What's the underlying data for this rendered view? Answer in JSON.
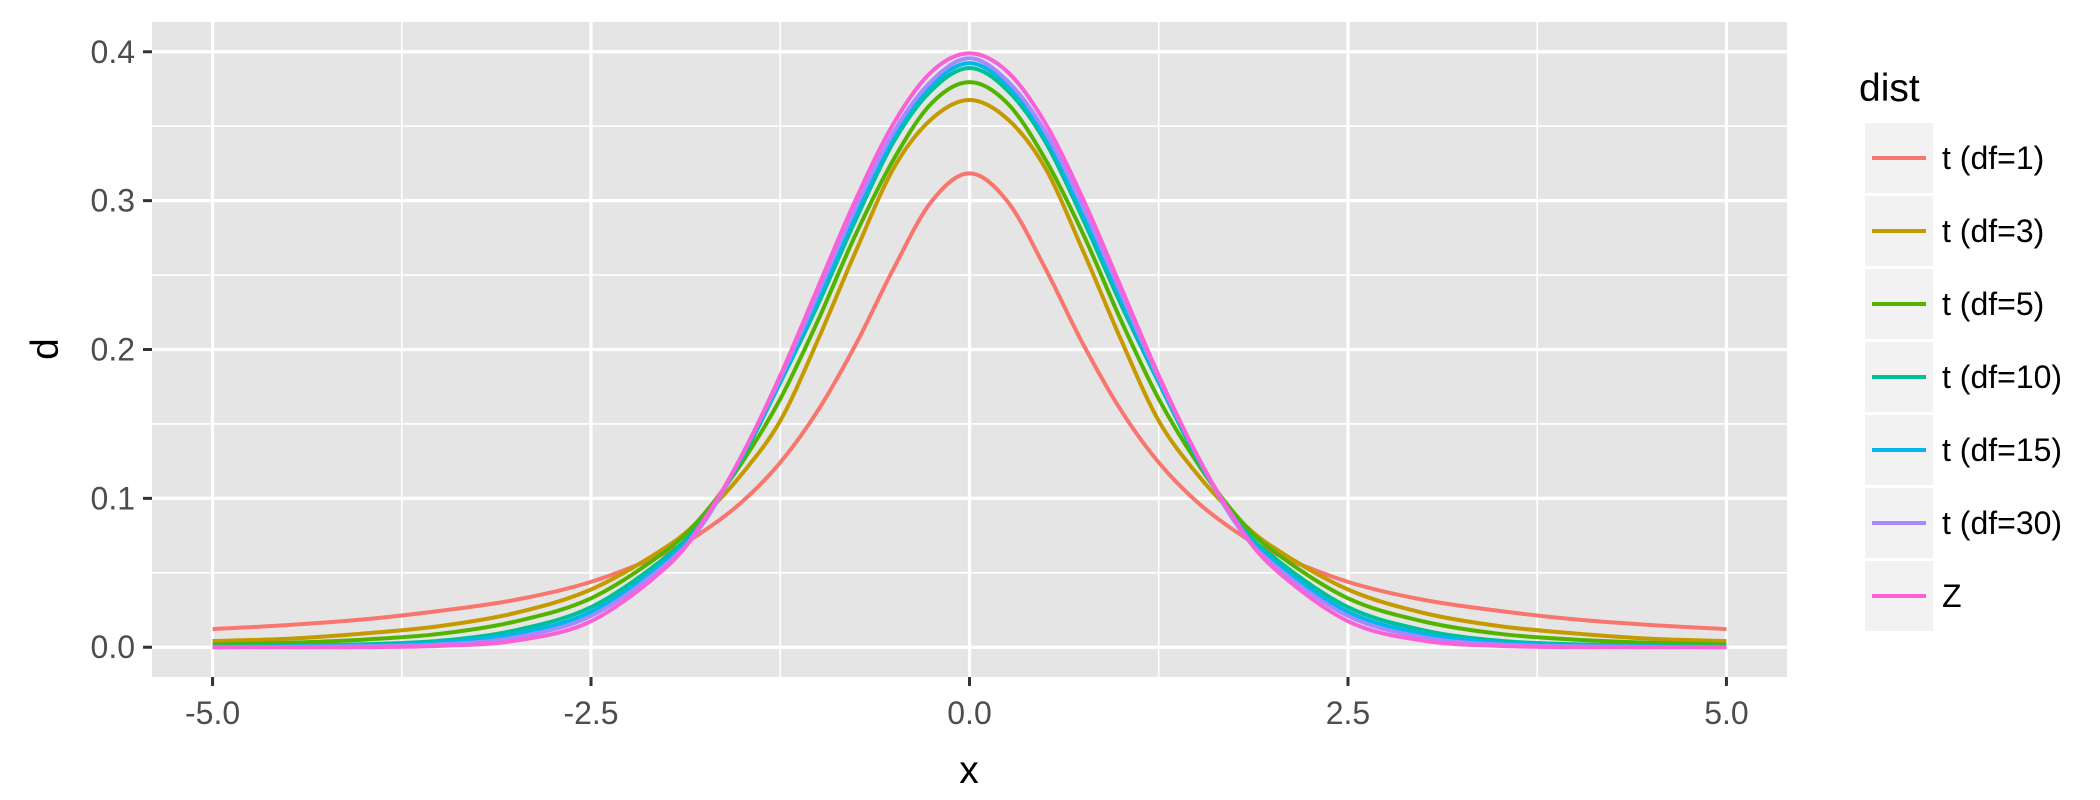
{
  "chart_data": {
    "type": "line",
    "xlabel": "x",
    "ylabel": "d",
    "xlim": [
      -5.4,
      5.4
    ],
    "ylim": [
      -0.02,
      0.42
    ],
    "x_ticks": [
      -5.0,
      -2.5,
      0.0,
      2.5,
      5.0
    ],
    "x_tick_labels": [
      "-5.0",
      "-2.5",
      "0.0",
      "2.5",
      "5.0"
    ],
    "y_ticks": [
      0.0,
      0.1,
      0.2,
      0.3,
      0.4
    ],
    "y_tick_labels": [
      "0.0",
      "0.1",
      "0.2",
      "0.3",
      "0.4"
    ],
    "grid": true,
    "legend": {
      "title": "dist",
      "position": "right"
    },
    "x": [
      -5.0,
      -4.5,
      -4.0,
      -3.5,
      -3.0,
      -2.5,
      -2.0,
      -1.75,
      -1.5,
      -1.25,
      -1.0,
      -0.75,
      -0.5,
      -0.25,
      0.0,
      0.25,
      0.5,
      0.75,
      1.0,
      1.25,
      1.5,
      1.75,
      2.0,
      2.5,
      3.0,
      3.5,
      4.0,
      4.5,
      5.0
    ],
    "series": [
      {
        "name": "t (df=1)",
        "color": "#F8766D",
        "values": [
          0.0122,
          0.0149,
          0.0187,
          0.0244,
          0.0318,
          0.0439,
          0.0637,
          0.0784,
          0.0979,
          0.1241,
          0.1592,
          0.2037,
          0.2546,
          0.2996,
          0.3183,
          0.2996,
          0.2546,
          0.2037,
          0.1592,
          0.1241,
          0.0979,
          0.0784,
          0.0637,
          0.0439,
          0.0318,
          0.0244,
          0.0187,
          0.0149,
          0.0122
        ]
      },
      {
        "name": "t (df=3)",
        "color": "#C49A00",
        "values": [
          0.0042,
          0.0057,
          0.0092,
          0.0142,
          0.023,
          0.0388,
          0.0675,
          0.089,
          0.1168,
          0.1521,
          0.2067,
          0.2663,
          0.322,
          0.3549,
          0.3676,
          0.3549,
          0.322,
          0.2663,
          0.2067,
          0.1521,
          0.1168,
          0.089,
          0.0675,
          0.0388,
          0.023,
          0.0142,
          0.0092,
          0.0057,
          0.0042
        ]
      },
      {
        "name": "t (df=5)",
        "color": "#53B400",
        "values": [
          0.0018,
          0.003,
          0.0051,
          0.009,
          0.0173,
          0.0329,
          0.0651,
          0.09,
          0.1245,
          0.1668,
          0.2197,
          0.2777,
          0.3279,
          0.3655,
          0.3796,
          0.3655,
          0.3279,
          0.2777,
          0.2197,
          0.1668,
          0.1245,
          0.09,
          0.0651,
          0.0329,
          0.0173,
          0.009,
          0.0051,
          0.003,
          0.0018
        ]
      },
      {
        "name": "t (df=10)",
        "color": "#00C094",
        "values": [
          0.0004,
          0.0009,
          0.002,
          0.0043,
          0.0114,
          0.0269,
          0.0611,
          0.0869,
          0.1274,
          0.1778,
          0.2304,
          0.2875,
          0.3397,
          0.3742,
          0.3891,
          0.3742,
          0.3397,
          0.2875,
          0.2304,
          0.1778,
          0.1274,
          0.0869,
          0.0611,
          0.0269,
          0.0114,
          0.0043,
          0.002,
          0.0009,
          0.0004
        ]
      },
      {
        "name": "t (df=15)",
        "color": "#00B6EB",
        "values": [
          0.0002,
          0.0005,
          0.0012,
          0.0032,
          0.009,
          0.0238,
          0.0585,
          0.086,
          0.1288,
          0.1788,
          0.234,
          0.2912,
          0.343,
          0.3775,
          0.3924,
          0.3775,
          0.343,
          0.2912,
          0.234,
          0.1788,
          0.1288,
          0.086,
          0.0585,
          0.0238,
          0.009,
          0.0032,
          0.0012,
          0.0005,
          0.0002
        ]
      },
      {
        "name": "t (df=30)",
        "color": "#A58AFF",
        "values": [
          0.0001,
          0.0002,
          0.0006,
          0.0018,
          0.0066,
          0.021,
          0.0562,
          0.0845,
          0.1297,
          0.1808,
          0.2379,
          0.2958,
          0.3463,
          0.3805,
          0.3956,
          0.3805,
          0.3463,
          0.2958,
          0.2379,
          0.1808,
          0.1297,
          0.0845,
          0.0562,
          0.021,
          0.0066,
          0.0018,
          0.0006,
          0.0002,
          0.0001
        ]
      },
      {
        "name": "Z",
        "color": "#FB61D7",
        "values": [
          0.0,
          0.0,
          0.0001,
          0.0009,
          0.0044,
          0.0175,
          0.054,
          0.0863,
          0.1295,
          0.1826,
          0.242,
          0.3011,
          0.3521,
          0.3867,
          0.3989,
          0.3867,
          0.3521,
          0.3011,
          0.242,
          0.1826,
          0.1295,
          0.0863,
          0.054,
          0.0175,
          0.0044,
          0.0009,
          0.0001,
          0.0,
          0.0
        ]
      }
    ]
  }
}
